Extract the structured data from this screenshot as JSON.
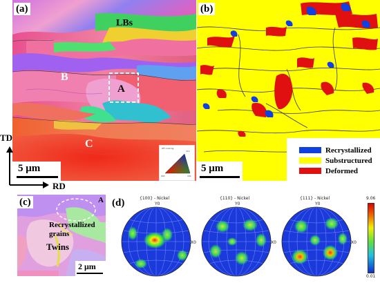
{
  "panel_a": {
    "label": "(a)",
    "annotations": {
      "lbs": "LBs",
      "b": "B",
      "a": "A",
      "c": "C"
    },
    "scale_bar": "5 μm",
    "ipf_key": {
      "title": "IPF coloring",
      "corners": [
        "001",
        "101",
        "111"
      ]
    }
  },
  "axes": {
    "td": "TD",
    "rd": "RD"
  },
  "panel_b": {
    "label": "(b)",
    "scale_bar": "5 μm",
    "legend": [
      {
        "label": "Recrystallized",
        "color": "#1040e0"
      },
      {
        "label": "Substructured",
        "color": "#ffff00"
      },
      {
        "label": "Deformed",
        "color": "#e01010"
      }
    ]
  },
  "panel_c": {
    "label": "(c)",
    "corner_label": "A",
    "annotation_grains": "Recrystallized grains",
    "annotation_twins": "Twins",
    "scale_bar": "2 μm"
  },
  "panel_d": {
    "label": "(d)",
    "pole_figures": [
      {
        "title": "{100} - Nickel",
        "y_axis": "Y0",
        "x_axis": "X0"
      },
      {
        "title": "{110} - Nickel",
        "y_axis": "Y0",
        "x_axis": "X0"
      },
      {
        "title": "{111} - Nickel",
        "y_axis": "Y0",
        "x_axis": "X0"
      }
    ],
    "colorbar": {
      "max": "9.06",
      "min": "0.01"
    }
  },
  "colors": {
    "substructured": "#ffff00",
    "deformed": "#e01010",
    "recrystallized": "#1040e0"
  }
}
